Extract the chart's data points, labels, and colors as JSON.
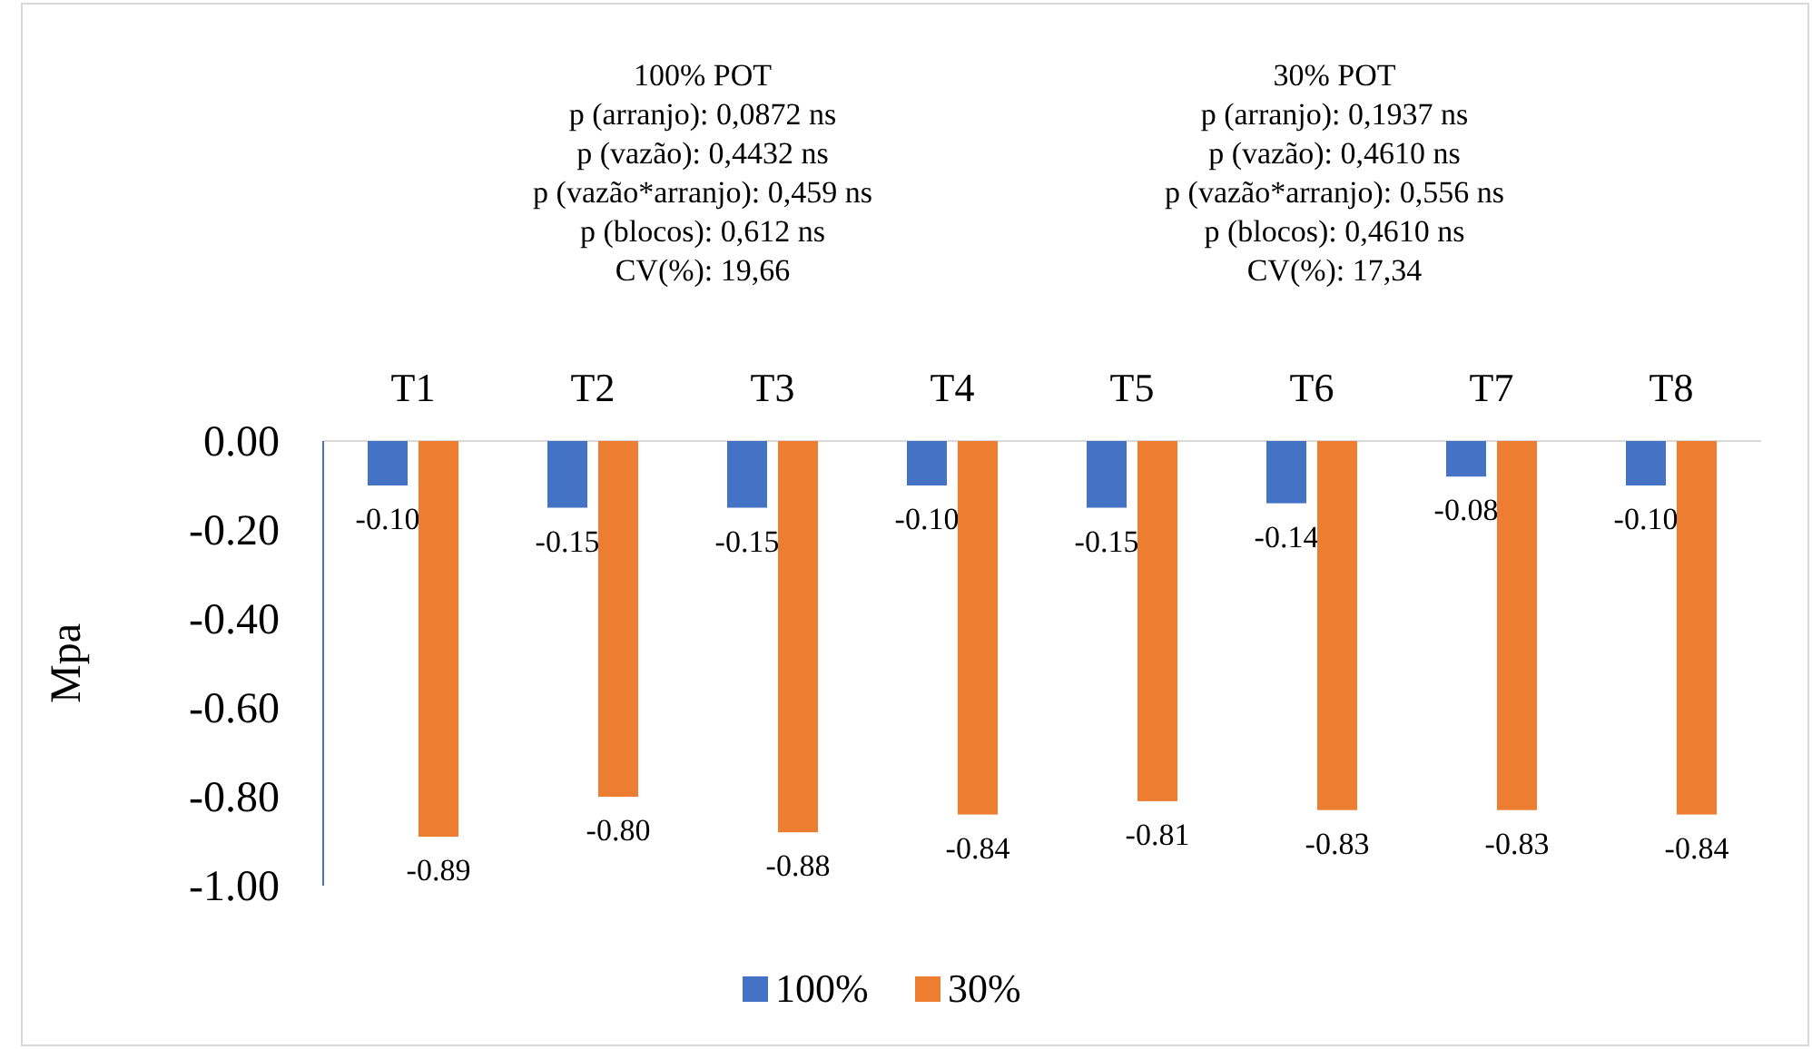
{
  "chart_data": {
    "type": "bar",
    "ylabel": "Mpa",
    "categories": [
      "T1",
      "T2",
      "T3",
      "T4",
      "T5",
      "T6",
      "T7",
      "T8"
    ],
    "series": [
      {
        "name": "100%",
        "color": "#4472c4",
        "values": [
          -0.1,
          -0.15,
          -0.15,
          -0.1,
          -0.15,
          -0.14,
          -0.08,
          -0.1
        ],
        "value_labels": [
          "-0.10",
          "-0.15",
          "-0.15",
          "-0.10",
          "-0.15",
          "-0.14",
          "-0.08",
          "-0.10"
        ]
      },
      {
        "name": "30%",
        "color": "#ed7d31",
        "values": [
          -0.89,
          -0.8,
          -0.88,
          -0.84,
          -0.81,
          -0.83,
          -0.83,
          -0.84
        ],
        "value_labels": [
          "-0.89",
          "-0.80",
          "-0.88",
          "-0.84",
          "-0.81",
          "-0.83",
          "-0.83",
          "-0.84"
        ]
      }
    ],
    "ylim": [
      -1,
      0
    ],
    "yticks": [
      {
        "value": 0,
        "label": "0.00"
      },
      {
        "value": -0.2,
        "label": "-0.20"
      },
      {
        "value": -0.4,
        "label": "-0.40"
      },
      {
        "value": -0.6,
        "label": "-0.60"
      },
      {
        "value": -0.8,
        "label": "-0.80"
      },
      {
        "value": -1,
        "label": "-1.00"
      }
    ],
    "legend": "bottom",
    "annotations": [
      "100% POT\np (arranjo): 0,0872 ns\np (vazão): 0,4432 ns\np (vazão*arranjo): 0,459 ns\np (blocos): 0,612 ns\nCV(%): 19,66",
      "30% POT\np (arranjo): 0,1937 ns\np (vazão): 0,4610 ns\np (vazão*arranjo): 0,556 ns\np (blocos): 0,4610 ns\nCV(%): 17,34"
    ]
  }
}
